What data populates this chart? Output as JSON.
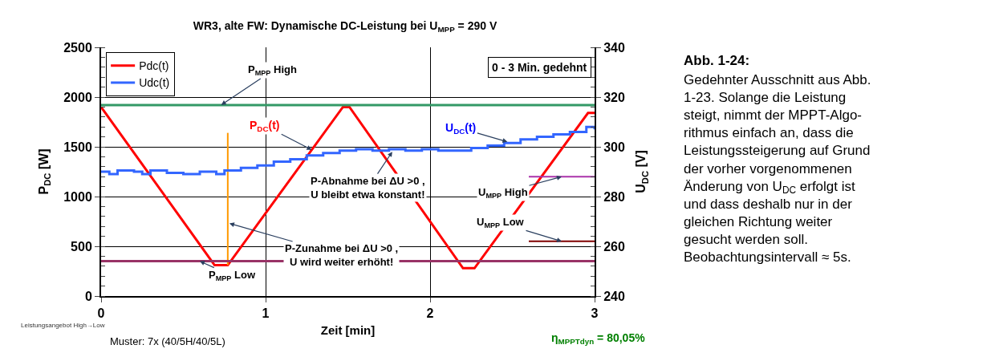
{
  "chart_data": {
    "type": "line",
    "title": "WR3, alte FW: Dynamische DC-Leistung bei U$_{MPP}$ = 290 V",
    "xlabel": "Zeit [min]",
    "ylabel": "P$_{DC}$ [W]",
    "y2label": "U$_{DC}$ [V]",
    "xlim": [
      0,
      3
    ],
    "xticks": [
      0,
      1,
      2,
      3
    ],
    "ylim": [
      0,
      2500
    ],
    "yticks": [
      0,
      500,
      1000,
      1500,
      2000,
      2500
    ],
    "y2lim": [
      240,
      340
    ],
    "y2ticks": [
      240,
      260,
      280,
      300,
      320,
      340
    ],
    "grid": true,
    "legend": "top left",
    "line_style": "solid",
    "marker": "none",
    "series": [
      {
        "name": "Pdc(t)",
        "color": "#ff0000",
        "x": [
          0,
          0.69,
          0.77,
          1.47,
          1.51,
          2.2,
          2.27,
          2.96,
          3
        ],
        "values": [
          1900,
          310,
          310,
          1900,
          1900,
          280,
          280,
          1840,
          1840
        ]
      },
      {
        "name": "Udc(t)",
        "color": "#3366ff",
        "type": "step",
        "axis": "y2",
        "x": [
          0,
          0.05,
          0.1,
          0.2,
          0.25,
          0.3,
          0.4,
          0.5,
          0.6,
          0.7,
          0.75,
          0.85,
          0.95,
          1.05,
          1.15,
          1.25,
          1.35,
          1.45,
          1.55,
          1.65,
          1.75,
          1.85,
          1.95,
          2.05,
          2.15,
          2.25,
          2.35,
          2.45,
          2.55,
          2.65,
          2.75,
          2.85,
          2.95,
          3
        ],
        "values": [
          290,
          289,
          290.5,
          290,
          289,
          290.5,
          289.5,
          289,
          290,
          289,
          290.5,
          291.5,
          292.5,
          294,
          295,
          296.5,
          297.5,
          298.5,
          299,
          298.5,
          299,
          298.5,
          299,
          298.5,
          298.5,
          299.5,
          300.5,
          301.5,
          303,
          304,
          305,
          306,
          308,
          307
        ]
      },
      {
        "color": "#ff9900",
        "x": [
          0.77,
          0.77
        ],
        "values": [
          310,
          1640
        ]
      },
      {
        "color": "#aa33aa",
        "axis": "y2",
        "x": [
          2.6,
          3
        ],
        "values": [
          288,
          288
        ]
      },
      {
        "color": "#800000",
        "axis": "y2",
        "x": [
          2.6,
          3
        ],
        "values": [
          262,
          262
        ]
      }
    ],
    "ref_lines": [
      {
        "axis": "y",
        "value": 1920,
        "color": "#339966"
      },
      {
        "axis": "y",
        "value": 350,
        "color": "#993366"
      }
    ],
    "annotations": [
      {
        "text": "P$_{MPP}$ High",
        "x": 0.73,
        "y": 1920
      },
      {
        "text": "P$_{DC}$(t)",
        "x": 1.28,
        "y": 1470
      },
      {
        "text": "U$_{DC}$(t)",
        "x": 2.47,
        "y": 1550
      },
      {
        "text": "P-Abnahme bei ΔU >0 ,\nU bleibt etwa konstant!",
        "x": 1.77,
        "y": 1450
      },
      {
        "text": "U$_{MPP}$ High",
        "x": 2.8,
        "y": 1200
      },
      {
        "text": "U$_{MPP}$ Low",
        "x": 2.8,
        "y": 550
      },
      {
        "text": "P-Zunahme bei ΔU >0 ,\nU wird weiter erhöht!",
        "x": 0.78,
        "y": 730
      },
      {
        "text": "P$_{MPP}$ Low",
        "x": 0.6,
        "y": 350
      },
      "0 - 3 Min. gedehnt",
      "Muster: 7x (40/5H/40/5L)",
      "η$_{MPPTdyn}$ = 80,05%",
      "Leistungsangebot High→Low",
      "Abb. 1-24:",
      "Gedehnter Ausschnitt aus Abb.\n1-23. Solange die Leistung\nsteigt, nimmt der MPPT-Algo-\nrithmus einfach an, dass die\nLeistungssteigerung auf Grund\nder vorher vorgenommenen\nÄnderung von U$_{DC}$ erfolgt ist\nund dass deshalb nur in der\ngleichen Richtung weiter\ngesucht werden soll.\nBeobachtungsintervall ≈ 5s."
    ]
  }
}
